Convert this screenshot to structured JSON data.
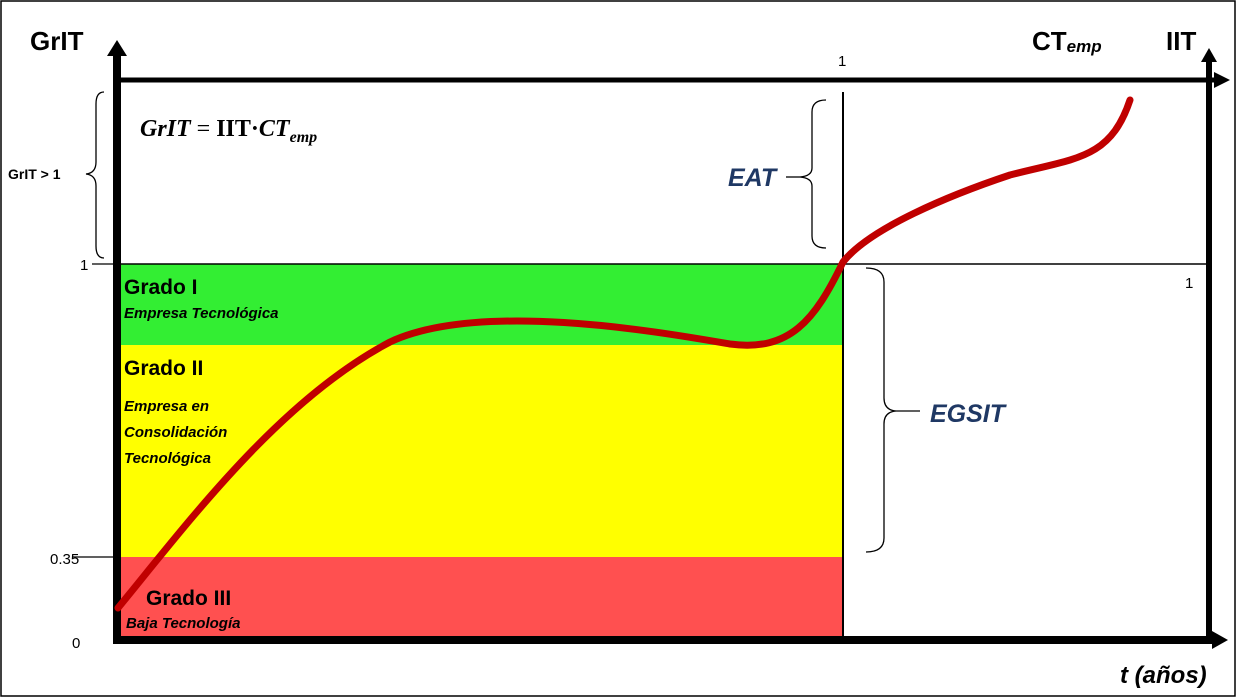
{
  "axes": {
    "left_label": "GrIT",
    "right_label": "IIT",
    "top_label_main": "CT",
    "top_label_sub": "emp",
    "top_tick": "1",
    "right_tick": "1",
    "x_label": "t (años)"
  },
  "left_ticks": {
    "above_one": "GrIT > 1",
    "one": "1",
    "mid": "0.35",
    "zero": "0"
  },
  "formula": {
    "lhs": "GrIT",
    "eq": " = ",
    "iit": "IIT",
    "dot": "·",
    "ct": "CT",
    "ct_sub": "emp"
  },
  "bands": [
    {
      "title": "Grado I",
      "subtitle": [
        "Empresa Tecnológica"
      ],
      "color": "#33ee33"
    },
    {
      "title": "Grado II",
      "subtitle": [
        "Empresa en",
        "Consolidación",
        "Tecnológica"
      ],
      "color": "#ffff00"
    },
    {
      "title": "Grado III",
      "subtitle": [
        "Baja Tecnología"
      ],
      "color": "#ff5050"
    }
  ],
  "regions": {
    "eat": "EAT",
    "egsit": "EGSIT"
  },
  "colors": {
    "curve": "#c00000",
    "label_blue": "#1f3864",
    "axis": "#000000"
  }
}
